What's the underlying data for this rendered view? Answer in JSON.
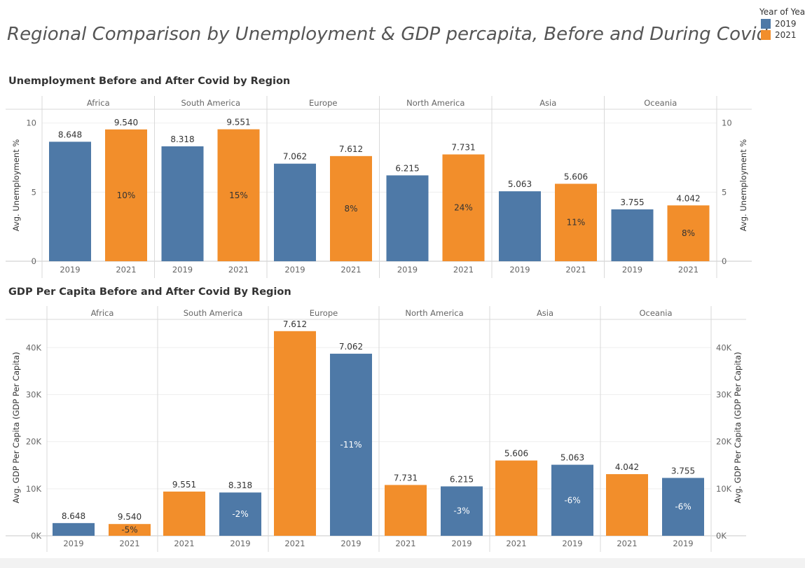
{
  "page": {
    "title": "Regional Comparison by Unemployment & GDP percapita, Before and During Covid"
  },
  "legend": {
    "title": "Year of Year",
    "items": [
      {
        "label": "2019",
        "color": "#4e79a7"
      },
      {
        "label": "2021",
        "color": "#f28e2b"
      }
    ]
  },
  "chart_data": [
    {
      "type": "bar",
      "title": "Unemployment Before and After Covid by Region",
      "ylabel": "Avg. Unemployment %",
      "ylim": [
        0,
        11
      ],
      "yticks": [
        "0",
        "5",
        "10"
      ],
      "ytick_values": [
        0,
        5,
        10
      ],
      "grid": true,
      "regions": [
        {
          "name": "Africa",
          "bars": [
            {
              "year": "2019",
              "value": 8.648,
              "label": "8.648",
              "pct": ""
            },
            {
              "year": "2021",
              "value": 9.54,
              "label": "9.540",
              "pct": "10%"
            }
          ]
        },
        {
          "name": "South America",
          "bars": [
            {
              "year": "2019",
              "value": 8.318,
              "label": "8.318",
              "pct": ""
            },
            {
              "year": "2021",
              "value": 9.551,
              "label": "9.551",
              "pct": "15%"
            }
          ]
        },
        {
          "name": "Europe",
          "bars": [
            {
              "year": "2019",
              "value": 7.062,
              "label": "7.062",
              "pct": ""
            },
            {
              "year": "2021",
              "value": 7.612,
              "label": "7.612",
              "pct": "8%"
            }
          ]
        },
        {
          "name": "North America",
          "bars": [
            {
              "year": "2019",
              "value": 6.215,
              "label": "6.215",
              "pct": ""
            },
            {
              "year": "2021",
              "value": 7.731,
              "label": "7.731",
              "pct": "24%"
            }
          ]
        },
        {
          "name": "Asia",
          "bars": [
            {
              "year": "2019",
              "value": 5.063,
              "label": "5.063",
              "pct": ""
            },
            {
              "year": "2021",
              "value": 5.606,
              "label": "5.606",
              "pct": "11%"
            }
          ]
        },
        {
          "name": "Oceania",
          "bars": [
            {
              "year": "2019",
              "value": 3.755,
              "label": "3.755",
              "pct": ""
            },
            {
              "year": "2021",
              "value": 4.042,
              "label": "4.042",
              "pct": "8%"
            }
          ]
        }
      ]
    },
    {
      "type": "bar",
      "title": "GDP Per Capita Before and After Covid By Region",
      "ylabel": "Avg. GDP Per Capita (GDP Per Capita)",
      "ylim": [
        0,
        46000
      ],
      "yticks": [
        "0K",
        "10K",
        "20K",
        "30K",
        "40K"
      ],
      "ytick_values": [
        0,
        10000,
        20000,
        30000,
        40000
      ],
      "grid": true,
      "regions": [
        {
          "name": "Africa",
          "bars": [
            {
              "year": "2019",
              "value": 2700,
              "label": "8.648",
              "pct": ""
            },
            {
              "year": "2021",
              "value": 2500,
              "label": "9.540",
              "pct": "-5%"
            }
          ]
        },
        {
          "name": "South America",
          "bars": [
            {
              "year": "2021",
              "value": 9400,
              "label": "9.551",
              "pct": ""
            },
            {
              "year": "2019",
              "value": 9200,
              "label": "8.318",
              "pct": "-2%"
            }
          ]
        },
        {
          "name": "Europe",
          "bars": [
            {
              "year": "2021",
              "value": 43500,
              "label": "7.612",
              "pct": ""
            },
            {
              "year": "2019",
              "value": 38700,
              "label": "7.062",
              "pct": "-11%"
            }
          ]
        },
        {
          "name": "North America",
          "bars": [
            {
              "year": "2021",
              "value": 10800,
              "label": "7.731",
              "pct": ""
            },
            {
              "year": "2019",
              "value": 10500,
              "label": "6.215",
              "pct": "-3%"
            }
          ]
        },
        {
          "name": "Asia",
          "bars": [
            {
              "year": "2021",
              "value": 16000,
              "label": "5.606",
              "pct": ""
            },
            {
              "year": "2019",
              "value": 15100,
              "label": "5.063",
              "pct": "-6%"
            }
          ]
        },
        {
          "name": "Oceania",
          "bars": [
            {
              "year": "2021",
              "value": 13100,
              "label": "4.042",
              "pct": ""
            },
            {
              "year": "2019",
              "value": 12300,
              "label": "3.755",
              "pct": "-6%"
            }
          ]
        }
      ]
    }
  ]
}
